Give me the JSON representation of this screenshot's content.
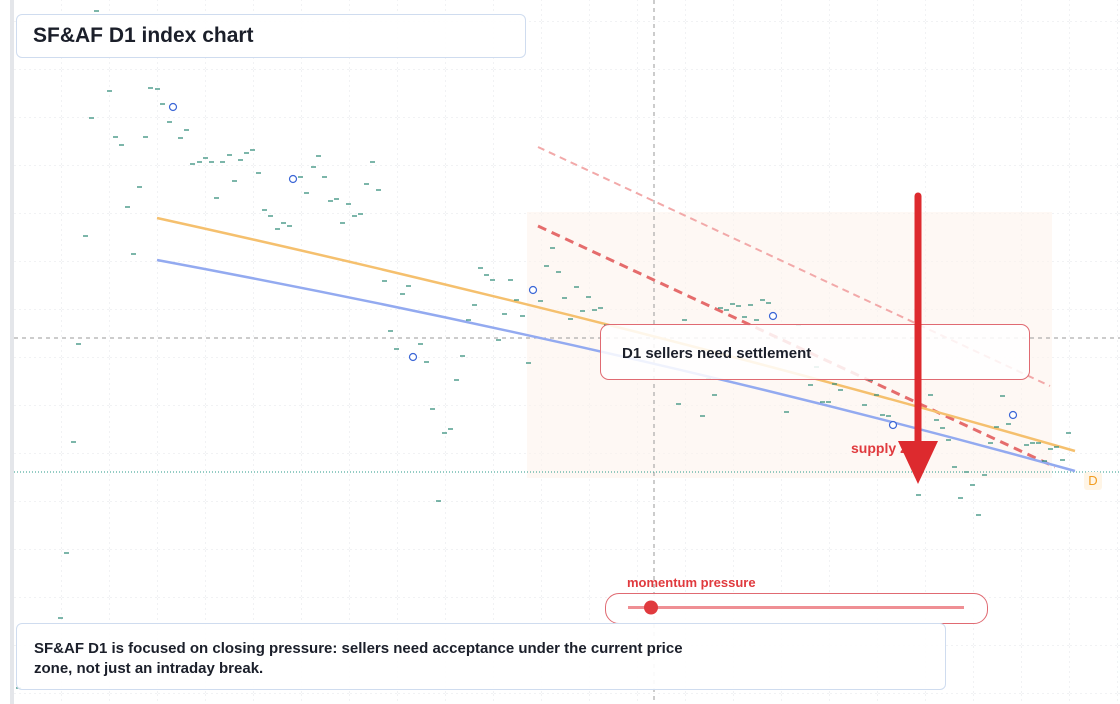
{
  "header": {
    "title": "SF&AF D1 index chart"
  },
  "callout": {
    "label": "D1 sellers need settlement"
  },
  "zone": {
    "label": "supply zone"
  },
  "marker": {
    "label": "D"
  },
  "momentum": {
    "label": "momentum pressure"
  },
  "note": {
    "text": "SF&AF D1 is focused on closing pressure: sellers need acceptance under the current price zone, not just an intraday break."
  }
}
